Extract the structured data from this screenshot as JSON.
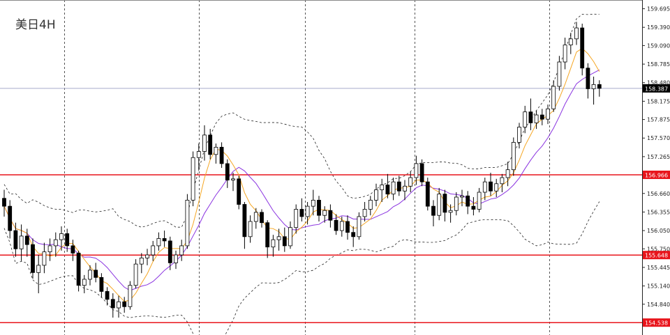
{
  "chart_data": {
    "type": "candlestick",
    "title": "美日4H",
    "ylim": [
      154.38,
      159.77
    ],
    "y_ticks": [
      "159.695",
      "159.390",
      "159.090",
      "158.785",
      "158.480",
      "158.175",
      "157.875",
      "157.570",
      "157.265",
      "156.660",
      "156.355",
      "156.050",
      "155.750",
      "155.445",
      "155.140",
      "154.840"
    ],
    "current_price": "158.387",
    "horizontal_levels": [
      {
        "value": "156.966",
        "color": "#e8141b"
      },
      {
        "value": "155.648",
        "color": "#e8141b"
      },
      {
        "value": "154.538",
        "color": "#e8141b"
      }
    ],
    "candles": [
      {
        "o": 156.58,
        "h": 156.72,
        "l": 156.28,
        "c": 156.45
      },
      {
        "o": 156.45,
        "h": 156.55,
        "l": 155.92,
        "c": 156.05
      },
      {
        "o": 156.05,
        "h": 156.18,
        "l": 155.62,
        "c": 155.75
      },
      {
        "o": 155.75,
        "h": 156.15,
        "l": 155.55,
        "c": 155.96
      },
      {
        "o": 155.96,
        "h": 156.08,
        "l": 155.62,
        "c": 155.82
      },
      {
        "o": 155.82,
        "h": 155.92,
        "l": 155.26,
        "c": 155.36
      },
      {
        "o": 155.36,
        "h": 155.65,
        "l": 155.02,
        "c": 155.48
      },
      {
        "o": 155.48,
        "h": 155.85,
        "l": 155.35,
        "c": 155.7
      },
      {
        "o": 155.7,
        "h": 155.92,
        "l": 155.55,
        "c": 155.8
      },
      {
        "o": 155.8,
        "h": 156.02,
        "l": 155.62,
        "c": 155.9
      },
      {
        "o": 155.9,
        "h": 156.12,
        "l": 155.72,
        "c": 156.0
      },
      {
        "o": 156.0,
        "h": 156.08,
        "l": 155.7,
        "c": 155.8
      },
      {
        "o": 155.8,
        "h": 155.9,
        "l": 155.55,
        "c": 155.68
      },
      {
        "o": 155.68,
        "h": 155.72,
        "l": 155.05,
        "c": 155.15
      },
      {
        "o": 155.15,
        "h": 155.32,
        "l": 155.02,
        "c": 155.25
      },
      {
        "o": 155.25,
        "h": 155.48,
        "l": 155.15,
        "c": 155.4
      },
      {
        "o": 155.4,
        "h": 155.52,
        "l": 155.2,
        "c": 155.28
      },
      {
        "o": 155.28,
        "h": 155.35,
        "l": 154.95,
        "c": 155.05
      },
      {
        "o": 155.05,
        "h": 155.12,
        "l": 154.82,
        "c": 154.92
      },
      {
        "o": 154.92,
        "h": 155.02,
        "l": 154.62,
        "c": 154.78
      },
      {
        "o": 154.78,
        "h": 154.98,
        "l": 154.62,
        "c": 154.88
      },
      {
        "o": 154.88,
        "h": 154.96,
        "l": 154.7,
        "c": 154.8
      },
      {
        "o": 154.8,
        "h": 155.22,
        "l": 154.75,
        "c": 155.15
      },
      {
        "o": 155.15,
        "h": 155.58,
        "l": 155.1,
        "c": 155.5
      },
      {
        "o": 155.5,
        "h": 155.68,
        "l": 155.35,
        "c": 155.6
      },
      {
        "o": 155.6,
        "h": 155.75,
        "l": 155.48,
        "c": 155.65
      },
      {
        "o": 155.65,
        "h": 155.88,
        "l": 155.55,
        "c": 155.8
      },
      {
        "o": 155.8,
        "h": 156.02,
        "l": 155.72,
        "c": 155.92
      },
      {
        "o": 155.92,
        "h": 156.05,
        "l": 155.78,
        "c": 155.88
      },
      {
        "o": 155.88,
        "h": 155.95,
        "l": 155.4,
        "c": 155.52
      },
      {
        "o": 155.52,
        "h": 155.72,
        "l": 155.42,
        "c": 155.65
      },
      {
        "o": 155.65,
        "h": 155.9,
        "l": 155.55,
        "c": 155.8
      },
      {
        "o": 155.8,
        "h": 156.65,
        "l": 155.75,
        "c": 156.55
      },
      {
        "o": 156.55,
        "h": 157.35,
        "l": 156.45,
        "c": 157.25
      },
      {
        "o": 157.25,
        "h": 157.48,
        "l": 157.05,
        "c": 157.35
      },
      {
        "o": 157.35,
        "h": 157.78,
        "l": 157.2,
        "c": 157.62
      },
      {
        "o": 157.62,
        "h": 157.72,
        "l": 157.22,
        "c": 157.3
      },
      {
        "o": 157.3,
        "h": 157.48,
        "l": 157.15,
        "c": 157.42
      },
      {
        "o": 157.42,
        "h": 157.5,
        "l": 157.08,
        "c": 157.15
      },
      {
        "o": 157.15,
        "h": 157.22,
        "l": 156.75,
        "c": 156.88
      },
      {
        "o": 156.88,
        "h": 157.0,
        "l": 156.7,
        "c": 156.9
      },
      {
        "o": 156.9,
        "h": 156.95,
        "l": 156.4,
        "c": 156.48
      },
      {
        "o": 156.48,
        "h": 156.52,
        "l": 155.75,
        "c": 155.95
      },
      {
        "o": 155.95,
        "h": 156.3,
        "l": 155.85,
        "c": 156.2
      },
      {
        "o": 156.2,
        "h": 156.42,
        "l": 156.08,
        "c": 156.35
      },
      {
        "o": 156.35,
        "h": 156.4,
        "l": 156.1,
        "c": 156.18
      },
      {
        "o": 156.18,
        "h": 156.22,
        "l": 155.6,
        "c": 155.78
      },
      {
        "o": 155.78,
        "h": 155.98,
        "l": 155.62,
        "c": 155.9
      },
      {
        "o": 155.9,
        "h": 156.08,
        "l": 155.72,
        "c": 155.95
      },
      {
        "o": 155.95,
        "h": 156.1,
        "l": 155.7,
        "c": 155.8
      },
      {
        "o": 155.8,
        "h": 156.2,
        "l": 155.75,
        "c": 156.1
      },
      {
        "o": 156.1,
        "h": 156.48,
        "l": 156.0,
        "c": 156.4
      },
      {
        "o": 156.4,
        "h": 156.58,
        "l": 156.2,
        "c": 156.28
      },
      {
        "o": 156.28,
        "h": 156.52,
        "l": 156.15,
        "c": 156.45
      },
      {
        "o": 156.45,
        "h": 156.72,
        "l": 156.3,
        "c": 156.55
      },
      {
        "o": 156.55,
        "h": 156.62,
        "l": 156.2,
        "c": 156.3
      },
      {
        "o": 156.3,
        "h": 156.45,
        "l": 156.18,
        "c": 156.38
      },
      {
        "o": 156.38,
        "h": 156.48,
        "l": 156.1,
        "c": 156.22
      },
      {
        "o": 156.22,
        "h": 156.32,
        "l": 155.98,
        "c": 156.05
      },
      {
        "o": 156.05,
        "h": 156.28,
        "l": 155.95,
        "c": 156.2
      },
      {
        "o": 156.2,
        "h": 156.3,
        "l": 155.9,
        "c": 156.02
      },
      {
        "o": 156.02,
        "h": 156.12,
        "l": 155.78,
        "c": 155.95
      },
      {
        "o": 155.95,
        "h": 156.35,
        "l": 155.9,
        "c": 156.28
      },
      {
        "o": 156.28,
        "h": 156.52,
        "l": 156.2,
        "c": 156.4
      },
      {
        "o": 156.4,
        "h": 156.62,
        "l": 156.3,
        "c": 156.55
      },
      {
        "o": 156.55,
        "h": 156.82,
        "l": 156.45,
        "c": 156.72
      },
      {
        "o": 156.72,
        "h": 156.9,
        "l": 156.52,
        "c": 156.8
      },
      {
        "o": 156.8,
        "h": 156.98,
        "l": 156.58,
        "c": 156.65
      },
      {
        "o": 156.65,
        "h": 156.92,
        "l": 156.55,
        "c": 156.85
      },
      {
        "o": 156.85,
        "h": 156.95,
        "l": 156.62,
        "c": 156.7
      },
      {
        "o": 156.7,
        "h": 156.88,
        "l": 156.55,
        "c": 156.78
      },
      {
        "o": 156.78,
        "h": 157.02,
        "l": 156.68,
        "c": 156.92
      },
      {
        "o": 156.92,
        "h": 157.28,
        "l": 156.8,
        "c": 157.15
      },
      {
        "o": 157.15,
        "h": 157.22,
        "l": 156.78,
        "c": 156.85
      },
      {
        "o": 156.85,
        "h": 156.92,
        "l": 156.38,
        "c": 156.45
      },
      {
        "o": 156.45,
        "h": 156.55,
        "l": 156.12,
        "c": 156.3
      },
      {
        "o": 156.3,
        "h": 156.75,
        "l": 156.22,
        "c": 156.65
      },
      {
        "o": 156.65,
        "h": 156.72,
        "l": 156.2,
        "c": 156.35
      },
      {
        "o": 156.35,
        "h": 156.48,
        "l": 156.18,
        "c": 156.38
      },
      {
        "o": 156.38,
        "h": 156.68,
        "l": 156.3,
        "c": 156.6
      },
      {
        "o": 156.6,
        "h": 156.72,
        "l": 156.45,
        "c": 156.62
      },
      {
        "o": 156.62,
        "h": 156.7,
        "l": 156.32,
        "c": 156.45
      },
      {
        "o": 156.45,
        "h": 156.6,
        "l": 156.3,
        "c": 156.4
      },
      {
        "o": 156.4,
        "h": 156.75,
        "l": 156.35,
        "c": 156.68
      },
      {
        "o": 156.68,
        "h": 156.92,
        "l": 156.55,
        "c": 156.85
      },
      {
        "o": 156.85,
        "h": 157.0,
        "l": 156.62,
        "c": 156.7
      },
      {
        "o": 156.7,
        "h": 156.9,
        "l": 156.6,
        "c": 156.82
      },
      {
        "o": 156.82,
        "h": 156.98,
        "l": 156.68,
        "c": 156.92
      },
      {
        "o": 156.92,
        "h": 157.18,
        "l": 156.78,
        "c": 157.05
      },
      {
        "o": 157.05,
        "h": 157.58,
        "l": 156.95,
        "c": 157.5
      },
      {
        "o": 157.5,
        "h": 157.82,
        "l": 157.4,
        "c": 157.75
      },
      {
        "o": 157.75,
        "h": 158.1,
        "l": 157.65,
        "c": 158.0
      },
      {
        "o": 158.0,
        "h": 158.22,
        "l": 157.7,
        "c": 157.82
      },
      {
        "o": 157.82,
        "h": 158.02,
        "l": 157.72,
        "c": 157.95
      },
      {
        "o": 157.95,
        "h": 158.05,
        "l": 157.78,
        "c": 157.88
      },
      {
        "o": 157.88,
        "h": 158.12,
        "l": 157.8,
        "c": 158.05
      },
      {
        "o": 158.05,
        "h": 158.52,
        "l": 158.0,
        "c": 158.42
      },
      {
        "o": 158.42,
        "h": 158.92,
        "l": 158.35,
        "c": 158.82
      },
      {
        "o": 158.82,
        "h": 159.22,
        "l": 158.7,
        "c": 159.1
      },
      {
        "o": 159.1,
        "h": 159.3,
        "l": 158.95,
        "c": 159.2
      },
      {
        "o": 159.2,
        "h": 159.48,
        "l": 159.1,
        "c": 159.38
      },
      {
        "o": 159.38,
        "h": 159.45,
        "l": 158.6,
        "c": 158.72
      },
      {
        "o": 158.72,
        "h": 158.8,
        "l": 158.22,
        "c": 158.38
      },
      {
        "o": 158.38,
        "h": 158.58,
        "l": 158.12,
        "c": 158.45
      },
      {
        "o": 158.45,
        "h": 158.52,
        "l": 158.25,
        "c": 158.387
      }
    ]
  }
}
